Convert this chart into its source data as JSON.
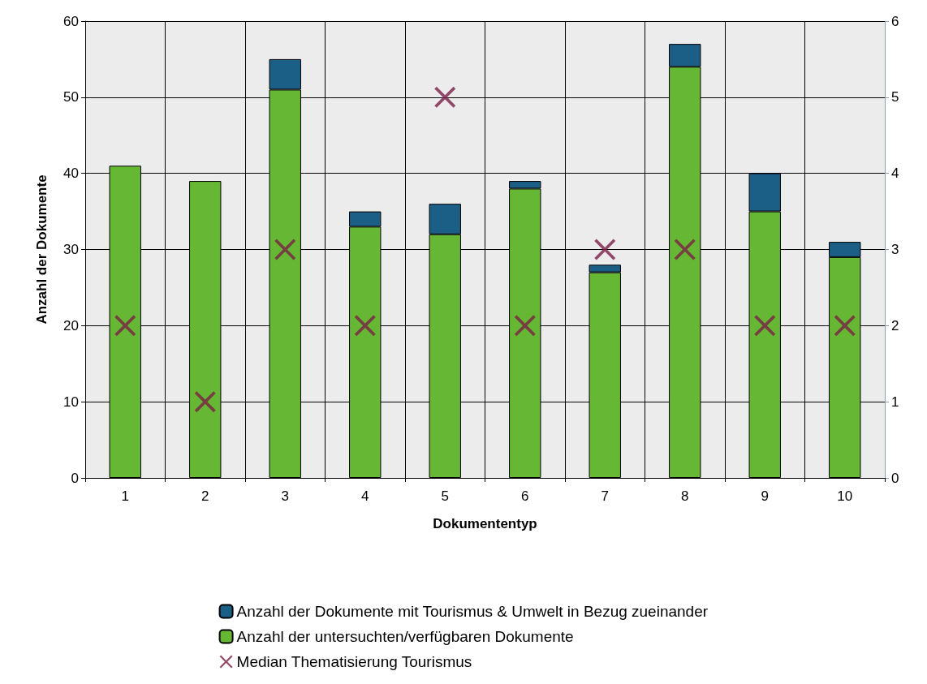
{
  "chart_data": {
    "type": "bar",
    "stacked": true,
    "xlabel": "Dokumententyp",
    "ylabel": "Anzahl der Dokumente",
    "categories": [
      "1",
      "2",
      "3",
      "4",
      "5",
      "6",
      "7",
      "8",
      "9",
      "10"
    ],
    "series": [
      {
        "name": "Anzahl der untersuchten/verfügbaren Dokumente",
        "color": "#66b834",
        "values": [
          41,
          39,
          51,
          33,
          32,
          38,
          27,
          54,
          35,
          29
        ]
      },
      {
        "name": "Anzahl der Dokumente mit Tourismus & Umwelt in Bezug zueinander",
        "color": "#1b5e86",
        "values": [
          0,
          0,
          4,
          2,
          4,
          1,
          1,
          3,
          5,
          2
        ]
      },
      {
        "name": "Median Thematisierung Tourismus",
        "type": "scatter",
        "axis": "y2",
        "marker": "cross",
        "color": "#7a1f45",
        "values": [
          2,
          1,
          3,
          2,
          5,
          2,
          3,
          3,
          2,
          2
        ]
      }
    ],
    "ylim": [
      0,
      60
    ],
    "yticks": [
      0,
      10,
      20,
      30,
      40,
      50,
      60
    ],
    "y2lim": [
      0,
      6
    ],
    "y2ticks": [
      0,
      1,
      2,
      3,
      4,
      5,
      6
    ],
    "grid": true,
    "legend": "bottom"
  }
}
